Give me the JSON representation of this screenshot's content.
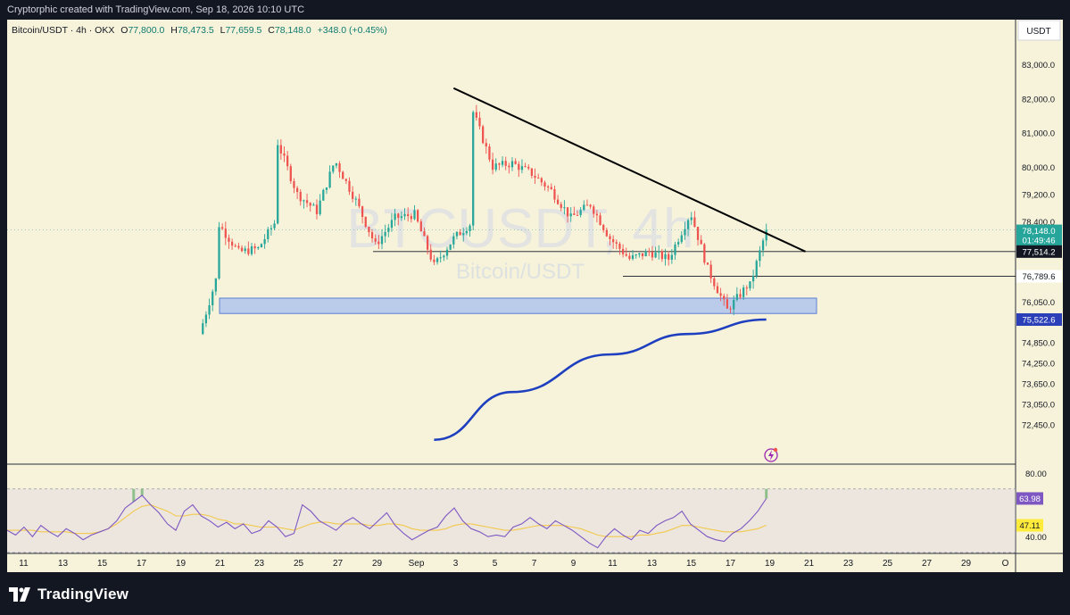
{
  "header": {
    "credit": "Cryptorphic created with TradingView.com, Sep 18, 2026 10:10 UTC"
  },
  "symbol_line": {
    "pair": "Bitcoin/USDT · 4h · OKX",
    "o_label": "O",
    "o": "77,800.0",
    "h_label": "H",
    "h": "78,473.5",
    "l_label": "L",
    "l": "77,659.5",
    "c_label": "C",
    "c": "78,148.0",
    "change": "+348.0 (+0.45%)"
  },
  "watermark": {
    "big": "BTCUSDT, 4h",
    "small": "Bitcoin/USDT"
  },
  "currency": "USDT",
  "price_axis": [
    "83,000.0",
    "82,000.0",
    "81,000.0",
    "80,000.0",
    "79,200.0",
    "78,400.0",
    "76,050.0",
    "74,850.0",
    "74,250.0",
    "73,650.0",
    "73,050.0",
    "72,450.0"
  ],
  "price_tags": [
    {
      "value": "78,148.0",
      "sub": "01:49:46",
      "color": "#26a69a",
      "text_color": "#ffffff"
    },
    {
      "value": "77,514.2",
      "color": "#131722",
      "text_color": "#ffffff"
    },
    {
      "value": "76,789.6",
      "color": "#ffffff",
      "text_color": "#131722"
    },
    {
      "value": "75,522.6",
      "color": "#2b3fb8",
      "text_color": "#ffffff"
    }
  ],
  "rsi_axis": [
    "80.00",
    "40.00"
  ],
  "rsi_tags": [
    {
      "value": "63.98",
      "color": "#7e57c2",
      "text_color": "#ffffff"
    },
    {
      "value": "47.11",
      "color": "#ffeb3b",
      "text_color": "#131722"
    }
  ],
  "time_axis": [
    "11",
    "13",
    "15",
    "17",
    "19",
    "21",
    "23",
    "25",
    "27",
    "29",
    "Sep",
    "3",
    "5",
    "7",
    "9",
    "11",
    "13",
    "15",
    "17",
    "19",
    "21",
    "23",
    "25",
    "27",
    "29",
    "O"
  ],
  "brand": "TradingView",
  "colors": {
    "up": "#26a69a",
    "down": "#ef5350",
    "ma": "#1e3fbf",
    "rsi": "#7e57c2",
    "rsi_ma": "#f2c94c",
    "zone": "#a7bff0",
    "trendline": "#000000",
    "background": "#f7f3da"
  },
  "chart_data": [
    {
      "type": "candlestick",
      "symbol": "Bitcoin/USDT",
      "interval": "4h",
      "exchange": "OKX",
      "ylim": [
        72000,
        83600
      ],
      "close_path": [
        [
          "Aug 20",
          72000
        ],
        [
          "Aug 20",
          75100
        ],
        [
          "Aug 21",
          77000
        ],
        [
          "Aug 21",
          78300
        ],
        [
          "Aug 22",
          77500
        ],
        [
          "Aug 23",
          77600
        ],
        [
          "Aug 24",
          78500
        ],
        [
          "Aug 24",
          80700
        ],
        [
          "Aug 25",
          79200
        ],
        [
          "Aug 26",
          78700
        ],
        [
          "Aug 27",
          80300
        ],
        [
          "Aug 27",
          80100
        ],
        [
          "Aug 28",
          79000
        ],
        [
          "Aug 29",
          77700
        ],
        [
          "Aug 30",
          78500
        ],
        [
          "Aug 31",
          78600
        ],
        [
          "Sep 1",
          77100
        ],
        [
          "Sep 2",
          77900
        ],
        [
          "Sep 3",
          78400
        ],
        [
          "Sep 3",
          81600
        ],
        [
          "Sep 4",
          80000
        ],
        [
          "Sep 5",
          80100
        ],
        [
          "Sep 6",
          79800
        ],
        [
          "Sep 7",
          79300
        ],
        [
          "Sep 8",
          78500
        ],
        [
          "Sep 9",
          78900
        ],
        [
          "Sep 10",
          77900
        ],
        [
          "Sep 11",
          77300
        ],
        [
          "Sep 12",
          77500
        ],
        [
          "Sep 13",
          77300
        ],
        [
          "Sep 14",
          78500
        ],
        [
          "Sep 14",
          78900
        ],
        [
          "Sep 15",
          77000
        ],
        [
          "Sep 16",
          75800
        ],
        [
          "Sep 17",
          76500
        ],
        [
          "Sep 17",
          76200
        ],
        [
          "Sep 18",
          78148
        ]
      ],
      "ohlc_last": {
        "open": 77800.0,
        "high": 78473.5,
        "low": 77659.5,
        "close": 78148.0,
        "change": 348.0,
        "change_pct": 0.45
      },
      "moving_average_path": [
        [
          "Sep 1",
          72000
        ],
        [
          "Sep 5",
          73400
        ],
        [
          "Sep 10",
          74500
        ],
        [
          "Sep 14",
          75100
        ],
        [
          "Sep 18",
          75522.6
        ]
      ],
      "trendline": [
        [
          "Sep 2",
          82300
        ],
        [
          "Sep 20",
          77514.2
        ]
      ],
      "support_zone": [
        75700,
        76150
      ],
      "horizontal_levels": [
        77514.2,
        76789.6
      ],
      "current_price": 78148.0,
      "countdown": "01:49:46",
      "moving_average_value": 75522.6
    },
    {
      "type": "line",
      "indicator": "RSI",
      "ylim": [
        30,
        85
      ],
      "levels": [
        70,
        30
      ],
      "series": [
        {
          "key": "rsi",
          "values": [
            44,
            41,
            46,
            40,
            47,
            43,
            40,
            45,
            42,
            38,
            41,
            43,
            45,
            50,
            58,
            62,
            66,
            60,
            55,
            48,
            44,
            56,
            60,
            53,
            50,
            46,
            49,
            45,
            48,
            42,
            44,
            50,
            46,
            40,
            42,
            60,
            56,
            50,
            47,
            44,
            49,
            52,
            48,
            45,
            50,
            55,
            47,
            42,
            38,
            41,
            44,
            46,
            53,
            58,
            50,
            45,
            43,
            40,
            41,
            40,
            46,
            48,
            52,
            48,
            45,
            50,
            47,
            44,
            40,
            36,
            33,
            40,
            45,
            41,
            38,
            44,
            42,
            47,
            50,
            52,
            56,
            48,
            44,
            40,
            38,
            37,
            42,
            45,
            50,
            56,
            63.98
          ]
        },
        {
          "key": "rsi_ma",
          "values": [
            44,
            44,
            44,
            44,
            43,
            43,
            43,
            43,
            42,
            42,
            42,
            43,
            45,
            48,
            52,
            56,
            59,
            60,
            58,
            56,
            53,
            53,
            54,
            54,
            53,
            51,
            50,
            48,
            48,
            47,
            46,
            46,
            46,
            45,
            44,
            46,
            48,
            49,
            49,
            48,
            48,
            48,
            48,
            47,
            47,
            48,
            48,
            47,
            45,
            44,
            44,
            44,
            45,
            47,
            48,
            48,
            47,
            46,
            45,
            44,
            44,
            45,
            46,
            47,
            47,
            47,
            47,
            46,
            45,
            43,
            41,
            40,
            40,
            40,
            40,
            41,
            41,
            42,
            43,
            45,
            47,
            47,
            46,
            45,
            44,
            43,
            43,
            43,
            44,
            45,
            47.11
          ]
        }
      ],
      "value": 63.98,
      "ma_value": 47.11
    }
  ]
}
